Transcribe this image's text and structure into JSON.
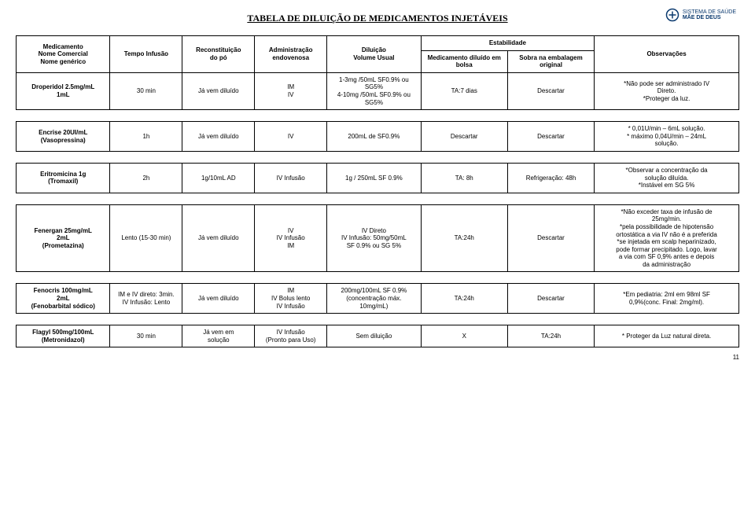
{
  "logo": {
    "line1": "SISTEMA DE SAÚDE",
    "line2": "MÃE DE DEUS"
  },
  "title": "TABELA DE DILUIÇÃO DE MEDICAMENTOS INJETÁVEIS",
  "headers": {
    "med": "Medicamento\nNome Comercial\nNome genérico",
    "tempo": "Tempo Infusão",
    "recon": "Reconstituição\ndo pó",
    "admin": "Administração\nendovenosa",
    "dilu": "Diluição\nVolume Usual",
    "est": "Estabilidade",
    "est1": "Medicamento diluído em\nbolsa",
    "est2": "Sobra na embalagem\noriginal",
    "obs": "Observações"
  },
  "rows": [
    {
      "med": "Droperidol 2.5mg/mL\n1mL",
      "tempo": "30 min",
      "recon": "Já vem diluído",
      "admin": "IM\nIV",
      "dilu": "1-3mg /50mL SF0.9% ou\nSG5%\n4-10mg /50mL SF0.9% ou\nSG5%",
      "est1": "TA:7 dias",
      "est2": "Descartar",
      "obs": "*Não pode ser administrado IV\nDireto.\n*Proteger da luz."
    },
    {
      "med": "Encrise 20UI/mL\n(Vasopressina)",
      "tempo": "1h",
      "recon": "Já vem diluído",
      "admin": "IV",
      "dilu": "200mL de SF0.9%",
      "est1": "Descartar",
      "est2": "Descartar",
      "obs": "* 0,01U/min – 6mL solução.\n* máximo 0,04U/min – 24mL\nsolução."
    },
    {
      "med": "Eritromicina 1g\n(Tromaxil)",
      "tempo": "2h",
      "recon": "1g/10mL AD",
      "admin": "IV Infusão",
      "dilu": "1g / 250mL SF 0.9%",
      "est1": "TA: 8h",
      "est2": "Refrigeração: 48h",
      "obs": "*Observar a concentração da\nsolução diluída.\n*Instável em SG 5%"
    },
    {
      "med": "Fenergan 25mg/mL\n2mL\n(Prometazina)",
      "tempo": "Lento (15-30 min)",
      "recon": "Já vem diluído",
      "admin": "IV\nIV Infusão\nIM",
      "dilu": "IV Direto\nIV Infusão: 50mg/50mL\nSF 0.9% ou SG 5%",
      "est1": "TA:24h",
      "est2": "Descartar",
      "obs": "*Não exceder taxa de infusão de\n25mg/min.\n*pela possibilidade de hipotensão\nortostática a via IV não é a preferida\n*se injetada em scalp heparinizado,\npode formar precipitado. Logo, lavar\na via com SF 0,9% antes e depois\nda administração"
    },
    {
      "med": "Fenocris 100mg/mL\n2mL\n(Fenobarbital sódico)",
      "tempo": "IM e IV direto: 3min.\nIV Infusão: Lento",
      "recon": "Já vem diluído",
      "admin": "IM\nIV Bolus lento\nIV Infusão",
      "dilu": "200mg/100mL SF 0.9%\n(concentração máx.\n10mg/mL)",
      "est1": "TA:24h",
      "est2": "Descartar",
      "obs": "*Em pediatria: 2ml em 98ml SF\n0,9%(conc. Final: 2mg/ml)."
    },
    {
      "med": "Flagyl 500mg/100mL\n(Metronidazol)",
      "tempo": "30 min",
      "recon": "Já vem em\nsolução",
      "admin": "IV Infusão\n(Pronto para Uso)",
      "dilu": "Sem diluição",
      "est1": "X",
      "est2": "TA:24h",
      "obs": "* Proteger da Luz natural direta."
    }
  ],
  "pageno": "11"
}
